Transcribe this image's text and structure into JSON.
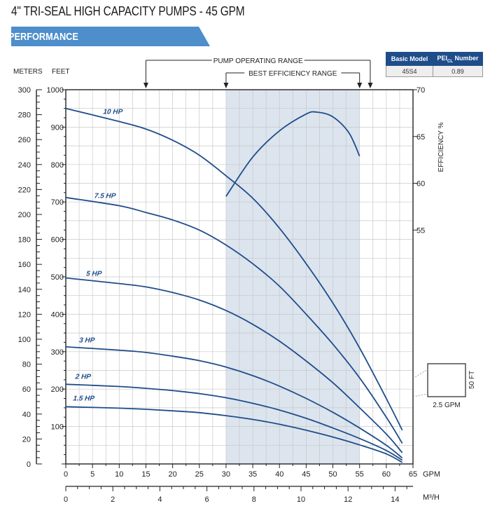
{
  "header": {
    "title": "4\" TRI-SEAL HIGH CAPACITY PUMPS - 45 GPM",
    "section": "PERFORMANCE"
  },
  "model_table": {
    "headers": [
      "Basic Model",
      "PEI",
      "Number"
    ],
    "pei_subscript": "CL",
    "rows": [
      [
        "45S4",
        "0.89"
      ]
    ]
  },
  "colors": {
    "curve": "#1f4d8a",
    "banner": "#4d8ecb",
    "bep_band": "#dce4ee",
    "grid": "#c8c8c8",
    "table_header": "#1f4d8a"
  },
  "chart_data": {
    "type": "line",
    "xlabel": "GPM",
    "xlabel2": "M³/H",
    "ylabel_left": "METERS",
    "ylabel_feet": "FEET",
    "ylabel_right": "EFFICIENCY %",
    "xlim": [
      0,
      65
    ],
    "ylim_feet": [
      0,
      1000
    ],
    "ylim_meters": [
      0,
      300
    ],
    "ylim_efficiency": [
      30,
      70
    ],
    "x_ticks": [
      0,
      5,
      10,
      15,
      20,
      25,
      30,
      35,
      40,
      45,
      50,
      55,
      60,
      65
    ],
    "x2_ticks": [
      0,
      2,
      4,
      6,
      8,
      10,
      12,
      14
    ],
    "feet_ticks": [
      100,
      200,
      300,
      400,
      500,
      600,
      700,
      800,
      900,
      1000
    ],
    "meter_ticks": [
      0,
      20,
      40,
      60,
      80,
      100,
      120,
      140,
      160,
      180,
      200,
      220,
      240,
      260,
      280,
      300
    ],
    "efficiency_ticks": [
      55,
      60,
      65,
      70
    ],
    "grid": true,
    "ranges": {
      "pump_operating_range": {
        "label": "PUMP OPERATING RANGE",
        "from": 15,
        "to": 57
      },
      "best_efficiency_range": {
        "label": "BEST EFFICIENCY RANGE",
        "from": 30,
        "to": 55
      }
    },
    "scale_box": {
      "width_label": "2.5 GPM",
      "height_label": "50 FT"
    },
    "series": [
      {
        "name": "10 HP",
        "x": [
          0,
          10,
          15,
          20,
          25,
          30,
          35,
          40,
          45,
          50,
          55,
          60,
          63
        ],
        "values": [
          950,
          915,
          895,
          865,
          825,
          770,
          710,
          630,
          535,
          430,
          310,
          175,
          90
        ]
      },
      {
        "name": "7.5 HP",
        "x": [
          0,
          10,
          15,
          20,
          25,
          30,
          35,
          40,
          45,
          50,
          55,
          60,
          63
        ],
        "values": [
          712,
          690,
          672,
          652,
          625,
          585,
          535,
          475,
          400,
          320,
          230,
          125,
          55
        ]
      },
      {
        "name": "5 HP",
        "x": [
          0,
          10,
          15,
          20,
          25,
          30,
          35,
          40,
          45,
          50,
          55,
          60,
          63
        ],
        "values": [
          497,
          482,
          473,
          458,
          438,
          410,
          373,
          328,
          275,
          217,
          150,
          80,
          30
        ]
      },
      {
        "name": "3 HP",
        "x": [
          0,
          10,
          15,
          20,
          25,
          30,
          35,
          40,
          45,
          50,
          55,
          60,
          63
        ],
        "values": [
          313,
          304,
          298,
          288,
          276,
          259,
          236,
          208,
          175,
          138,
          96,
          50,
          16
        ]
      },
      {
        "name": "2 HP",
        "x": [
          0,
          10,
          15,
          20,
          25,
          30,
          35,
          40,
          45,
          50,
          55,
          60,
          63
        ],
        "values": [
          213,
          207,
          202,
          196,
          188,
          177,
          162,
          144,
          122,
          96,
          68,
          36,
          10
        ]
      },
      {
        "name": "1.5 HP",
        "x": [
          0,
          10,
          15,
          20,
          25,
          30,
          35,
          40,
          45,
          50,
          55,
          60,
          63
        ],
        "values": [
          153,
          149,
          146,
          142,
          137,
          129,
          119,
          106,
          90,
          72,
          51,
          27,
          4
        ]
      }
    ],
    "efficiency_curve": {
      "x": [
        30,
        35,
        40,
        45,
        47,
        50,
        53,
        55
      ],
      "values": [
        58.6,
        62.8,
        65.6,
        67.4,
        67.6,
        67.1,
        65.4,
        62.9
      ]
    }
  }
}
